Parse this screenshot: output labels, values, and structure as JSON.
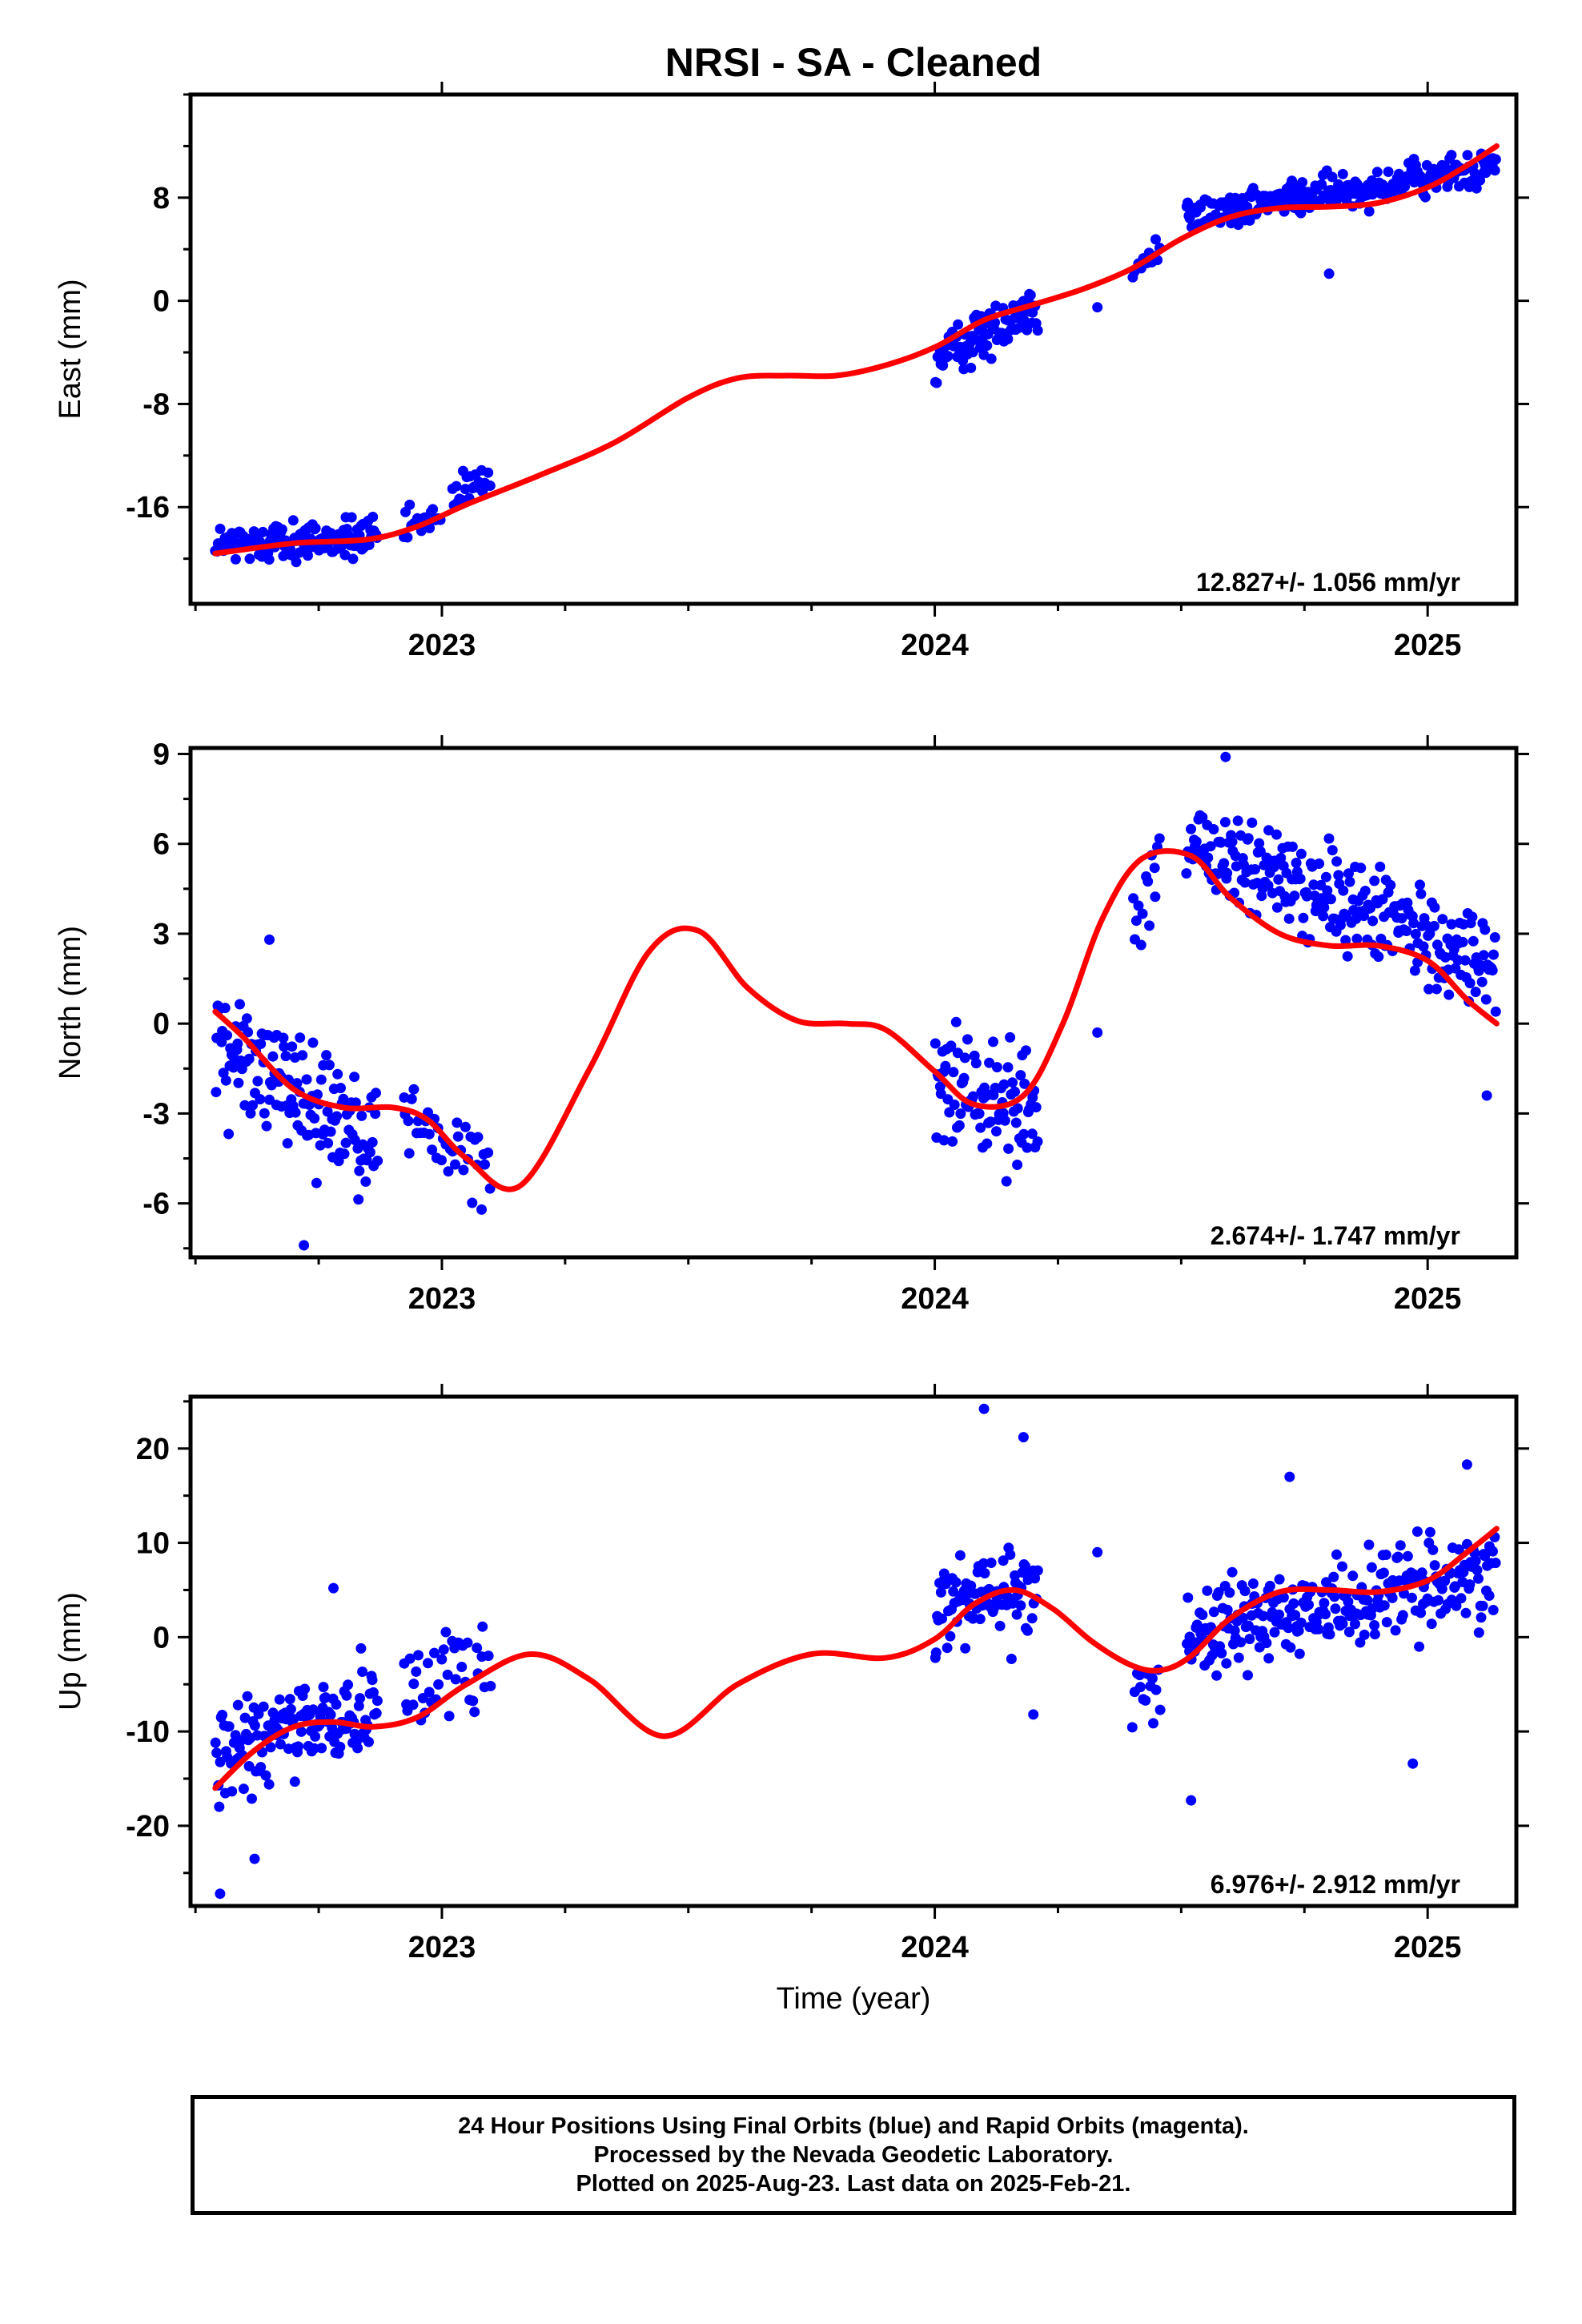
{
  "title": "NRSI  - SA - Cleaned",
  "xlabel": "Time (year)",
  "footer": {
    "lines": [
      "24 Hour Positions Using Final Orbits (blue) and Rapid Orbits (magenta).",
      "Processed by the Nevada Geodetic Laboratory.",
      "Plotted on 2025-Aug-23. Last data on 2025-Feb-21."
    ]
  },
  "colors": {
    "points": "#0000ff",
    "fit": "#ff0000",
    "frame": "#000000"
  },
  "chart_data": [
    {
      "type": "scatter",
      "ylabel": "East (mm)",
      "xlim": [
        2022.49,
        2025.18
      ],
      "ylim": [
        -23.5,
        16
      ],
      "x_ticks": [
        2023,
        2024,
        2025
      ],
      "y_ticks": [
        -16,
        -8,
        0,
        8
      ],
      "rate_label": "12.827+/- 1.056 mm/yr",
      "fit": {
        "x": [
          2022.54,
          2022.7,
          2022.85,
          2022.95,
          2023.05,
          2023.2,
          2023.35,
          2023.5,
          2023.6,
          2023.7,
          2023.8,
          2023.9,
          2024.0,
          2024.1,
          2024.2,
          2024.3,
          2024.4,
          2024.5,
          2024.6,
          2024.7,
          2024.8,
          2024.9,
          2025.0,
          2025.08,
          2025.14
        ],
        "y": [
          -19.6,
          -18.8,
          -18.5,
          -17.5,
          -15.8,
          -13.5,
          -11.0,
          -7.5,
          -6.0,
          -5.8,
          -5.8,
          -5.0,
          -3.6,
          -1.5,
          -0.3,
          0.9,
          2.5,
          4.8,
          6.5,
          7.2,
          7.3,
          7.6,
          8.8,
          10.5,
          12.0
        ]
      },
      "segments": [
        {
          "x_start": 2022.54,
          "x_end": 2022.87,
          "center": -18.6,
          "slope": 2.0,
          "amp": 1.3,
          "n": 140
        },
        {
          "x_start": 2022.92,
          "x_end": 2023.0,
          "center": -17.2,
          "slope": 10.0,
          "amp": 1.1,
          "n": 20
        },
        {
          "x_start": 2023.02,
          "x_end": 2023.1,
          "center": -14.5,
          "slope": 20.0,
          "amp": 1.2,
          "n": 22
        },
        {
          "x_start": 2024.0,
          "x_end": 2024.21,
          "center": -2.5,
          "slope": 22.0,
          "amp": 1.6,
          "n": 90
        },
        {
          "x_start": 2024.4,
          "x_end": 2024.46,
          "center": 3.2,
          "slope": 25.0,
          "amp": 1.2,
          "n": 14
        },
        {
          "x_start": 2024.51,
          "x_end": 2025.14,
          "center": 8.5,
          "slope": 6.0,
          "amp": 1.2,
          "n": 260
        }
      ],
      "isolated": [
        [
          2024.33,
          -0.5
        ],
        [
          2024.8,
          2.1
        ]
      ]
    },
    {
      "type": "scatter",
      "ylabel": "North (mm)",
      "xlim": [
        2022.49,
        2025.18
      ],
      "ylim": [
        -7.8,
        9.2
      ],
      "x_ticks": [
        2023,
        2024,
        2025
      ],
      "y_ticks": [
        -6,
        -3,
        0,
        3,
        6,
        9
      ],
      "rate_label": "2.674+/- 1.747 mm/yr",
      "fit": {
        "x": [
          2022.54,
          2022.6,
          2022.7,
          2022.8,
          2022.9,
          2022.97,
          2023.05,
          2023.16,
          2023.3,
          2023.42,
          2023.52,
          2023.62,
          2023.72,
          2023.82,
          2023.9,
          2024.0,
          2024.08,
          2024.18,
          2024.26,
          2024.34,
          2024.42,
          2024.52,
          2024.6,
          2024.7,
          2024.8,
          2024.9,
          2025.0,
          2025.08,
          2025.14
        ],
        "y": [
          0.4,
          -0.5,
          -2.2,
          -2.8,
          -2.8,
          -3.2,
          -4.5,
          -5.4,
          -1.5,
          2.4,
          3.1,
          1.2,
          0.1,
          0.0,
          -0.2,
          -1.6,
          -2.7,
          -2.4,
          0.0,
          3.5,
          5.5,
          5.6,
          4.2,
          3.0,
          2.6,
          2.6,
          2.1,
          0.8,
          0.0
        ]
      },
      "segments": [
        {
          "x_start": 2022.54,
          "x_end": 2022.87,
          "center": -2.3,
          "slope": -9.0,
          "amp": 1.8,
          "n": 140
        },
        {
          "x_start": 2022.92,
          "x_end": 2023.1,
          "center": -4.0,
          "slope": -10.0,
          "amp": 1.2,
          "n": 40
        },
        {
          "x_start": 2024.0,
          "x_end": 2024.21,
          "center": -2.4,
          "slope": -6.0,
          "amp": 1.7,
          "n": 90
        },
        {
          "x_start": 2024.4,
          "x_end": 2024.46,
          "center": 4.5,
          "slope": 30.0,
          "amp": 1.3,
          "n": 14
        },
        {
          "x_start": 2024.51,
          "x_end": 2025.14,
          "center": 4.0,
          "slope": -6.5,
          "amp": 1.4,
          "n": 260
        }
      ],
      "isolated": [
        [
          2022.65,
          2.8
        ],
        [
          2022.72,
          -7.4
        ],
        [
          2024.33,
          -0.3
        ],
        [
          2024.59,
          8.9
        ],
        [
          2025.12,
          -2.4
        ]
      ]
    },
    {
      "type": "scatter",
      "ylabel": "Up (mm)",
      "xlim": [
        2022.49,
        2025.18
      ],
      "ylim": [
        -28.5,
        25.5
      ],
      "x_ticks": [
        2023,
        2024,
        2025
      ],
      "y_ticks": [
        -20,
        -10,
        0,
        10,
        20
      ],
      "rate_label": "6.976+/- 2.912 mm/yr",
      "fit": {
        "x": [
          2022.54,
          2022.62,
          2022.7,
          2022.78,
          2022.86,
          2022.95,
          2023.05,
          2023.18,
          2023.3,
          2023.45,
          2023.6,
          2023.75,
          2023.9,
          2024.0,
          2024.08,
          2024.16,
          2024.24,
          2024.32,
          2024.4,
          2024.46,
          2024.52,
          2024.6,
          2024.7,
          2024.8,
          2024.9,
          2025.0,
          2025.08,
          2025.14
        ],
        "y": [
          -16.0,
          -12.0,
          -9.5,
          -9.0,
          -9.5,
          -8.5,
          -5.0,
          -1.8,
          -4.5,
          -10.5,
          -5.0,
          -1.8,
          -2.2,
          -0.2,
          3.5,
          5.0,
          3.0,
          -0.5,
          -3.0,
          -3.5,
          -2.0,
          2.0,
          4.8,
          5.0,
          4.8,
          6.0,
          9.0,
          11.5
        ]
      },
      "segments": [
        {
          "x_start": 2022.54,
          "x_end": 2022.87,
          "center": -10.0,
          "slope": 18.0,
          "amp": 4.5,
          "n": 140
        },
        {
          "x_start": 2022.92,
          "x_end": 2023.1,
          "center": -4.0,
          "slope": 5.0,
          "amp": 4.5,
          "n": 40
        },
        {
          "x_start": 2024.0,
          "x_end": 2024.21,
          "center": 4.0,
          "slope": 5.0,
          "amp": 4.5,
          "n": 90
        },
        {
          "x_start": 2024.4,
          "x_end": 2024.46,
          "center": -4.5,
          "slope": 0.0,
          "amp": 3.5,
          "n": 14
        },
        {
          "x_start": 2024.51,
          "x_end": 2025.14,
          "center": 3.5,
          "slope": 10.0,
          "amp": 4.0,
          "n": 260
        }
      ],
      "isolated": [
        [
          2022.55,
          -27.2
        ],
        [
          2022.62,
          -23.5
        ],
        [
          2022.78,
          5.2
        ],
        [
          2024.1,
          24.2
        ],
        [
          2024.18,
          21.2
        ],
        [
          2024.2,
          -8.2
        ],
        [
          2024.33,
          9.0
        ],
        [
          2024.52,
          -17.3
        ],
        [
          2024.72,
          17.0
        ],
        [
          2024.97,
          -13.4
        ],
        [
          2025.08,
          18.3
        ]
      ]
    }
  ]
}
